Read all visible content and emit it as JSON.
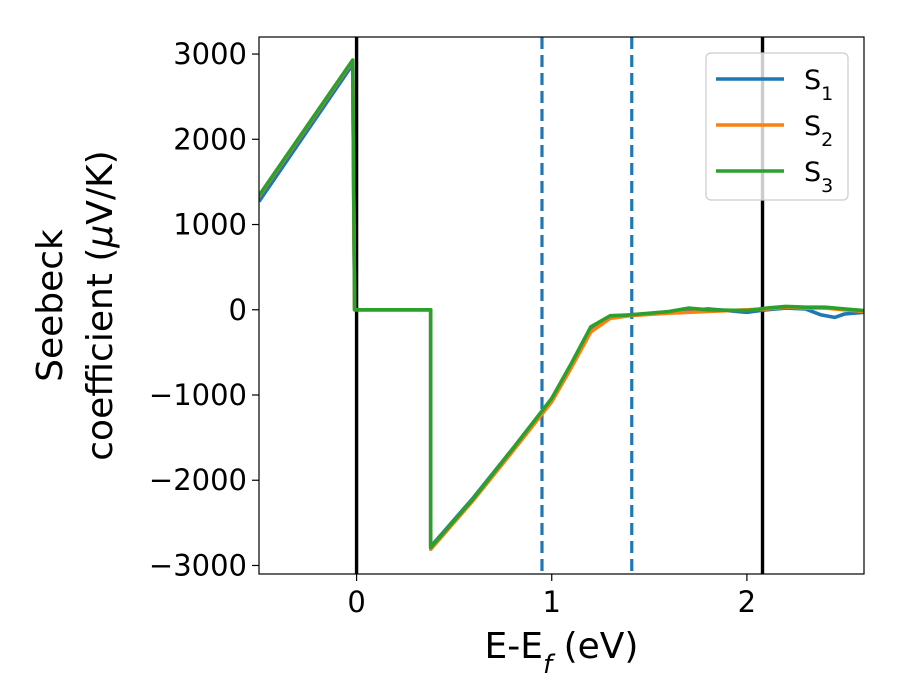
{
  "chart_data": {
    "type": "line",
    "xlabel": {
      "main": "E-E",
      "sub": "f",
      "tail": " (eV)"
    },
    "ylabel": {
      "line1": "Seebeck",
      "line2": "coefficient  (",
      "mu": "μ",
      "line2_tail": "V/K)"
    },
    "xlim": [
      -0.5,
      2.6
    ],
    "ylim": [
      -3100,
      3200
    ],
    "xticks": [
      {
        "value": 0,
        "label": "0"
      },
      {
        "value": 1,
        "label": "1"
      },
      {
        "value": 2,
        "label": "2"
      }
    ],
    "yticks": [
      {
        "value": 3000,
        "label": "3000"
      },
      {
        "value": 2000,
        "label": "2000"
      },
      {
        "value": 1000,
        "label": "1000"
      },
      {
        "value": 0,
        "label": "0"
      },
      {
        "value": -1000,
        "label": "−1000"
      },
      {
        "value": -2000,
        "label": "−2000"
      },
      {
        "value": -3000,
        "label": "−3000"
      }
    ],
    "grid": false,
    "legend_position": "top-right",
    "vlines": [
      {
        "x": 0.0,
        "style": "solid",
        "color": "#000000"
      },
      {
        "x": 2.08,
        "style": "solid",
        "color": "#000000"
      },
      {
        "x": 0.95,
        "style": "dashed",
        "color": "#1f77b4"
      },
      {
        "x": 1.41,
        "style": "dashed",
        "color": "#1f77b4"
      }
    ],
    "series": [
      {
        "name": "S",
        "sub": "1",
        "color": "#1f77b4",
        "points": [
          [
            -0.5,
            1270
          ],
          [
            -0.02,
            2880
          ],
          [
            -0.01,
            0
          ],
          [
            0.38,
            0
          ],
          [
            0.38,
            -2780
          ],
          [
            0.6,
            -2200
          ],
          [
            0.8,
            -1630
          ],
          [
            1.0,
            -1050
          ],
          [
            1.1,
            -640
          ],
          [
            1.2,
            -230
          ],
          [
            1.3,
            -80
          ],
          [
            1.4,
            -60
          ],
          [
            1.6,
            -30
          ],
          [
            1.8,
            10
          ],
          [
            2.0,
            -30
          ],
          [
            2.1,
            0
          ],
          [
            2.2,
            20
          ],
          [
            2.3,
            10
          ],
          [
            2.38,
            -60
          ],
          [
            2.45,
            -90
          ],
          [
            2.5,
            -50
          ],
          [
            2.6,
            -30
          ]
        ]
      },
      {
        "name": "S",
        "sub": "2",
        "color": "#ff7f0e",
        "points": [
          [
            -0.5,
            1330
          ],
          [
            -0.02,
            2920
          ],
          [
            -0.01,
            0
          ],
          [
            0.38,
            0
          ],
          [
            0.38,
            -2810
          ],
          [
            0.6,
            -2230
          ],
          [
            0.8,
            -1660
          ],
          [
            1.0,
            -1080
          ],
          [
            1.1,
            -680
          ],
          [
            1.2,
            -260
          ],
          [
            1.3,
            -100
          ],
          [
            1.4,
            -70
          ],
          [
            1.6,
            -40
          ],
          [
            1.8,
            -20
          ],
          [
            2.0,
            0
          ],
          [
            2.1,
            10
          ],
          [
            2.2,
            30
          ],
          [
            2.3,
            20
          ],
          [
            2.4,
            20
          ],
          [
            2.5,
            0
          ],
          [
            2.6,
            -20
          ]
        ]
      },
      {
        "name": "S",
        "sub": "3",
        "color": "#2ca02c",
        "points": [
          [
            -0.5,
            1340
          ],
          [
            -0.02,
            2930
          ],
          [
            -0.01,
            0
          ],
          [
            0.38,
            0
          ],
          [
            0.38,
            -2790
          ],
          [
            0.6,
            -2210
          ],
          [
            0.8,
            -1630
          ],
          [
            1.0,
            -1040
          ],
          [
            1.1,
            -630
          ],
          [
            1.2,
            -200
          ],
          [
            1.3,
            -70
          ],
          [
            1.4,
            -60
          ],
          [
            1.6,
            -20
          ],
          [
            1.7,
            20
          ],
          [
            1.8,
            0
          ],
          [
            2.0,
            -10
          ],
          [
            2.1,
            20
          ],
          [
            2.2,
            40
          ],
          [
            2.3,
            30
          ],
          [
            2.4,
            30
          ],
          [
            2.5,
            10
          ],
          [
            2.6,
            -10
          ]
        ]
      }
    ]
  }
}
